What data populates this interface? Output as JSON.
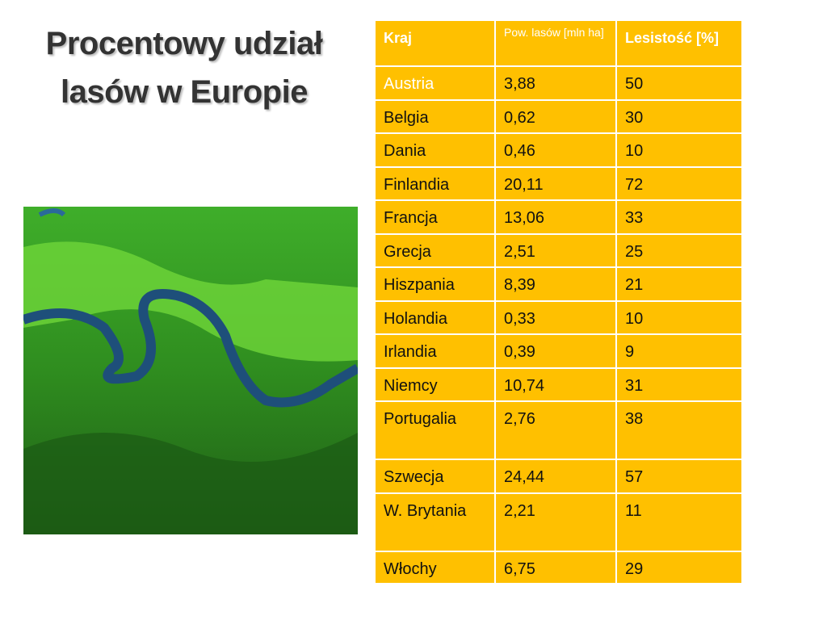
{
  "title": {
    "lines": [
      "Procentowy udział",
      "lasów w Europie"
    ]
  },
  "table": {
    "header": [
      "Kraj",
      "Pow. lasów [mln ha]",
      "Lesistość [%]"
    ],
    "rows": [
      [
        "Austria",
        "3,88",
        "50"
      ],
      [
        "Belgia",
        "0,62",
        "30"
      ],
      [
        "Dania",
        "0,46",
        "10"
      ],
      [
        "Finlandia",
        "20,11",
        "72"
      ],
      [
        "Francja",
        "13,06",
        "33"
      ],
      [
        "Grecja",
        "2,51",
        "25"
      ],
      [
        "Hiszpania",
        "8,39",
        "21"
      ],
      [
        "Holandia",
        "0,33",
        "10"
      ],
      [
        "Irlandia",
        "0,39",
        "9"
      ],
      [
        "Niemcy",
        "10,74",
        "31"
      ],
      [
        "Portugalia",
        "2,76",
        "38"
      ],
      [
        "Szwecja",
        "24,44",
        "57"
      ],
      [
        "W. Brytania",
        "2,21",
        "11"
      ],
      [
        "Włochy",
        "6,75",
        "29"
      ]
    ]
  }
}
